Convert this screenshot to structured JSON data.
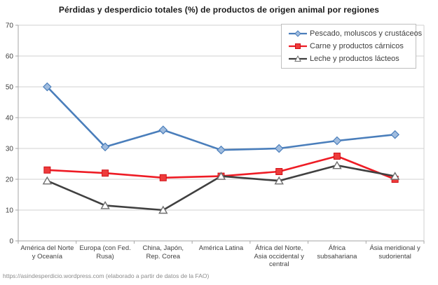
{
  "page": {
    "footer": "https://asindesperdicio.wordpress.com  (elaborado a partir de datos de la FAO)"
  },
  "colors": {
    "gridline": "#d0d0d0",
    "axis": "#a6a6a6",
    "tick_text": "#3f3f3f",
    "title_text": "#1a1a1a",
    "legend_border": "#bfbfbf",
    "footer_text": "#8c8c8c",
    "series_blue": "#4a7ebb",
    "series_red": "#ee1c25",
    "series_dark": "#404040"
  },
  "chart_data": {
    "type": "line",
    "title": "Pérdidas y desperdicio totales (%) de productos de origen animal por regiones",
    "xlabel": "",
    "ylabel": "",
    "ylim": [
      0,
      70
    ],
    "yticks": [
      0,
      10,
      20,
      30,
      40,
      50,
      60,
      70
    ],
    "grid": true,
    "legend_position": "top-right",
    "categories": [
      "América del Norte y Oceanía",
      "Europa (con Fed. Rusa)",
      "China, Japón, Rep. Corea",
      "América Latina",
      "África del Norte, Asia occidental y central",
      "África subsahariana",
      "Ásia meridional y sudoriental"
    ],
    "series": [
      {
        "name": "Pescado, moluscos y crustáceos",
        "marker": "diamond",
        "line_color": "#4a7ebb",
        "marker_fill": "#a0bcde",
        "marker_stroke": "#4a7ebb",
        "values": [
          50,
          30.5,
          36,
          29.5,
          30,
          32.5,
          34.5
        ]
      },
      {
        "name": "Carne y productos cárnicos",
        "marker": "square",
        "line_color": "#ee1c25",
        "marker_fill": "#ee3b3b",
        "marker_stroke": "#d01118",
        "values": [
          23,
          22,
          20.5,
          21,
          22.5,
          27.5,
          20
        ]
      },
      {
        "name": "Leche y productos lácteos",
        "marker": "triangle-open",
        "line_color": "#404040",
        "marker_fill": "#ffffff",
        "marker_stroke": "#6e6e6e",
        "values": [
          19.5,
          11.5,
          10,
          21,
          19.5,
          24.5,
          21
        ]
      }
    ]
  }
}
